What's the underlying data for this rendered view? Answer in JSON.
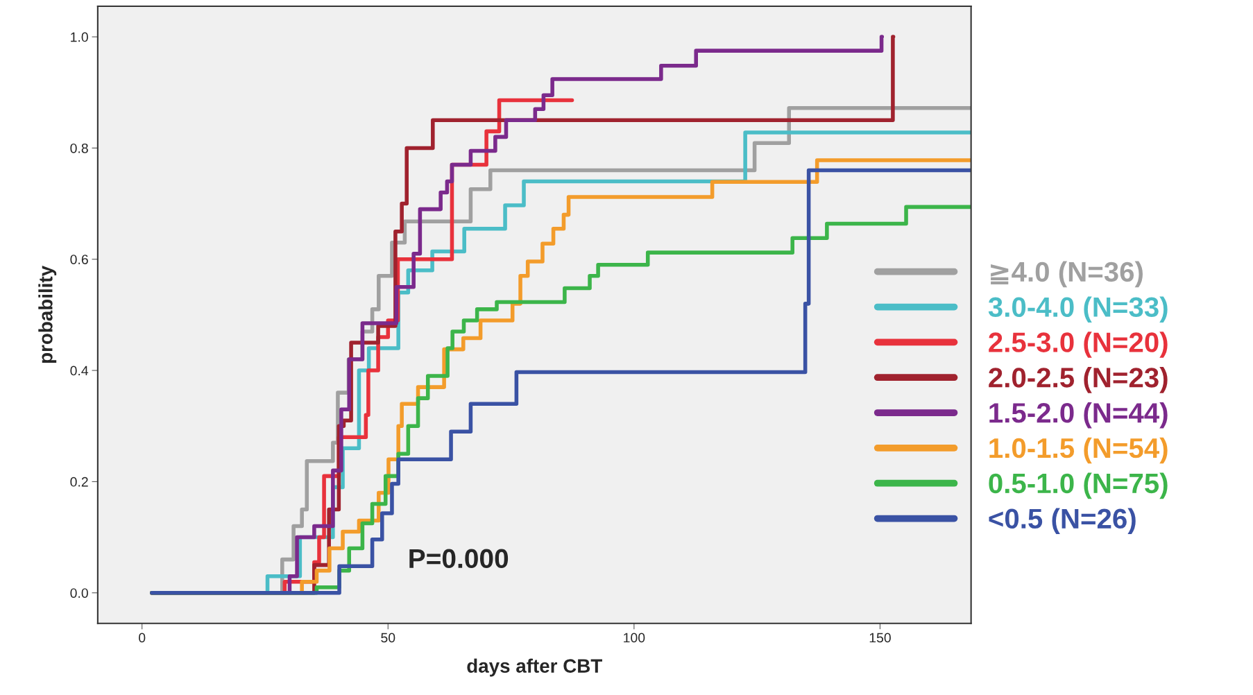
{
  "chart_data": {
    "type": "step",
    "xlabel": "days after CBT",
    "ylabel": "probability",
    "xlim": [
      -9,
      168.5
    ],
    "ylim": [
      -0.055,
      1.055
    ],
    "xticks": [
      0,
      50,
      100,
      150
    ],
    "yticks": [
      {
        "value": 0,
        "label": "0.0"
      },
      {
        "value": 0.2,
        "label": "0.2"
      },
      {
        "value": 0.4,
        "label": "0.4"
      },
      {
        "value": 0.6,
        "label": "0.6"
      },
      {
        "value": 0.8,
        "label": "0.8"
      },
      {
        "value": 1,
        "label": "1.0"
      }
    ],
    "grid": false,
    "legend": "right",
    "marker": "none",
    "line_style": "solid",
    "annotations": [
      "P=0.000"
    ],
    "series": [
      {
        "name": "≧4.0 (N=36)",
        "color": "#a0a0a0",
        "x": [
          2,
          28.5,
          30.8,
          32.5,
          33.5,
          38.8,
          39.8,
          42,
          44.8,
          46.8,
          48.1,
          50.8,
          53.4,
          66.8,
          70.8,
          124.5,
          131.5,
          168.5
        ],
        "values": [
          0,
          0.06,
          0.12,
          0.15,
          0.237,
          0.27,
          0.36,
          0.42,
          0.47,
          0.51,
          0.57,
          0.63,
          0.668,
          0.726,
          0.76,
          0.809,
          0.872,
          0.872
        ]
      },
      {
        "name": "3.0-4.0 (N=33)",
        "color": "#4bbdc7",
        "x": [
          2,
          25.5,
          32.1,
          38.8,
          40.8,
          44.1,
          46.1,
          52.1,
          54.1,
          59,
          65.5,
          73.8,
          77.6,
          122.6,
          168.5
        ],
        "values": [
          0,
          0.03,
          0.1,
          0.19,
          0.26,
          0.4,
          0.44,
          0.54,
          0.58,
          0.614,
          0.655,
          0.697,
          0.74,
          0.828,
          0.828
        ]
      },
      {
        "name": "2.5-3.0 (N=20)",
        "color": "#e8323c",
        "x": [
          2,
          29,
          35,
          36,
          37,
          40,
          45.5,
          46,
          48,
          50,
          52,
          63,
          70,
          72.6,
          87.4
        ],
        "values": [
          0,
          0.02,
          0.055,
          0.1,
          0.21,
          0.28,
          0.32,
          0.4,
          0.46,
          0.49,
          0.6,
          0.77,
          0.83,
          0.886,
          0.886
        ]
      },
      {
        "name": "2.0-2.5 (N=23)",
        "color": "#a0222e",
        "x": [
          2,
          35,
          38,
          40,
          41,
          42.5,
          48,
          51.5,
          52.8,
          53.8,
          59.1,
          152.6,
          152.7
        ],
        "values": [
          0,
          0.05,
          0.15,
          0.3,
          0.31,
          0.45,
          0.48,
          0.65,
          0.7,
          0.8,
          0.85,
          1.0,
          1.0
        ]
      },
      {
        "name": "1.5-2.0 (N=44)",
        "color": "#7b2a8c",
        "x": [
          2,
          30,
          31.5,
          35,
          38.8,
          40.5,
          42.1,
          44.8,
          51.7,
          55.2,
          56.5,
          60.7,
          62,
          63,
          66.8,
          71.8,
          74,
          79.9,
          81.6,
          83.4,
          105.5,
          112.6,
          150.3,
          150.4
        ],
        "values": [
          0,
          0.03,
          0.1,
          0.12,
          0.22,
          0.33,
          0.42,
          0.485,
          0.55,
          0.61,
          0.69,
          0.72,
          0.74,
          0.77,
          0.795,
          0.82,
          0.85,
          0.87,
          0.895,
          0.924,
          0.948,
          0.975,
          1.0,
          1.0
        ]
      },
      {
        "name": "1.0-1.5 (N=54)",
        "color": "#f39c2b",
        "x": [
          2,
          32.5,
          35.5,
          38.1,
          40.8,
          44.1,
          48.1,
          50.1,
          52.1,
          52.8,
          56.1,
          61.4,
          65.3,
          68.8,
          75.3,
          76.9,
          78.4,
          81.4,
          83.6,
          85.7,
          86.7,
          115.9,
          137.2,
          168.5
        ],
        "values": [
          0,
          0.02,
          0.04,
          0.08,
          0.11,
          0.13,
          0.18,
          0.24,
          0.3,
          0.34,
          0.37,
          0.438,
          0.458,
          0.49,
          0.52,
          0.57,
          0.596,
          0.628,
          0.655,
          0.68,
          0.712,
          0.739,
          0.778,
          0.778
        ]
      },
      {
        "name": "0.5-1.0 (N=75)",
        "color": "#3cb54a",
        "x": [
          2,
          35.5,
          40.1,
          42.1,
          44.8,
          46.8,
          49.5,
          52.1,
          54.1,
          56.1,
          58.1,
          62.1,
          63.1,
          65.4,
          68.1,
          72.1,
          85.9,
          91,
          92.7,
          102.8,
          132.2,
          139.2,
          155.3,
          168.5
        ],
        "values": [
          0,
          0.01,
          0.04,
          0.08,
          0.125,
          0.16,
          0.21,
          0.25,
          0.3,
          0.35,
          0.39,
          0.44,
          0.47,
          0.49,
          0.51,
          0.523,
          0.548,
          0.57,
          0.59,
          0.612,
          0.638,
          0.664,
          0.694,
          0.694
        ]
      },
      {
        "name": "<0.5 (N=26)",
        "color": "#3a52a4",
        "x": [
          2,
          40.1,
          46.8,
          48.8,
          50.8,
          52.1,
          62.8,
          66.8,
          76.1,
          134.8,
          135.5,
          168.5
        ],
        "values": [
          0,
          0.048,
          0.096,
          0.143,
          0.196,
          0.24,
          0.29,
          0.34,
          0.397,
          0.52,
          0.76,
          0.76
        ]
      }
    ]
  }
}
